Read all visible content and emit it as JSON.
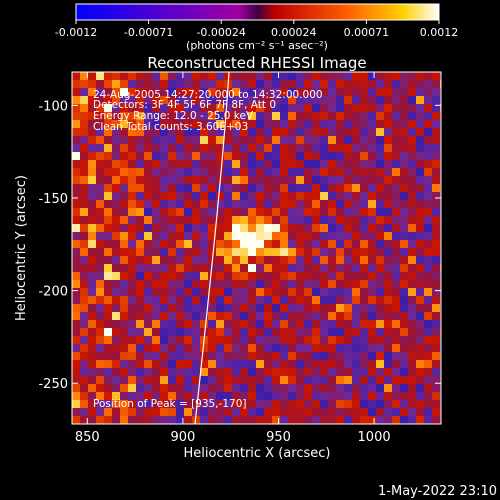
{
  "chart_data": {
    "type": "heatmap",
    "title": "Reconstructed RHESSI Image",
    "xlabel": "Heliocentric X (arcsec)",
    "ylabel": "Heliocentric Y (arcsec)",
    "xlim": [
      842,
      1035
    ],
    "ylim": [
      -272,
      -82
    ],
    "x_ticks": [
      850,
      900,
      950,
      1000
    ],
    "y_ticks": [
      -100,
      -150,
      -200,
      -250
    ],
    "colorbar": {
      "ticks": [
        "-0.0012",
        "-0.00071",
        "-0.00024",
        "0.00024",
        "0.00071",
        "0.0012"
      ],
      "unit_label": "(photons cm⁻² s⁻¹ asec⁻²)",
      "range": [
        -0.0012,
        0.0012
      ]
    },
    "peak_position": [
      935,
      -170
    ],
    "info_lines": [
      "24-Aug-2005 14:27:20.000 to 14:32:00.000",
      "Detectors: 3F 4F 5F 6F 7F 8F, Att 0",
      "Energy Range: 12.0 - 25.0 keV",
      "Clean     Total counts: 3.60E+03"
    ],
    "peak_text": "Position of Peak = [935,-170]",
    "grid": false
  },
  "timestamp": "1-May-2022 23:10"
}
